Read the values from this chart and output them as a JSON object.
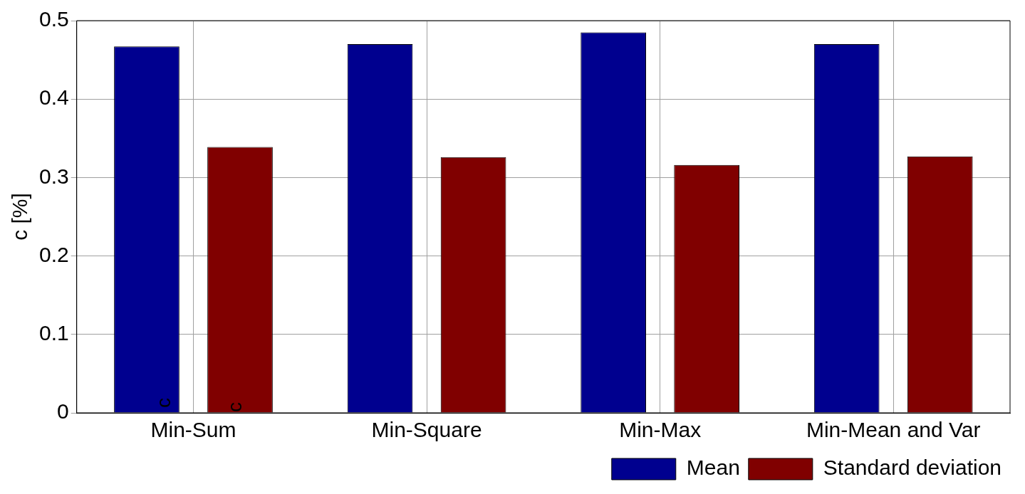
{
  "chart_data": {
    "type": "bar",
    "ylabel": "c [%]",
    "categories": [
      "Min-Sum",
      "Min-Square",
      "Min-Max",
      "Min-Mean and Var"
    ],
    "series": [
      {
        "name": "Mean",
        "color": "#00008f",
        "values": [
          0.467,
          0.47,
          0.485,
          0.47
        ]
      },
      {
        "name": "Standard deviation",
        "color": "#800000",
        "values": [
          0.339,
          0.326,
          0.316,
          0.327
        ]
      }
    ],
    "ylim": [
      0,
      0.5
    ],
    "yticks": [
      0,
      0.1,
      0.2,
      0.3,
      0.4,
      0.5
    ],
    "grid": true,
    "legend": "bottom right",
    "annotations": [
      "c",
      "c"
    ]
  }
}
